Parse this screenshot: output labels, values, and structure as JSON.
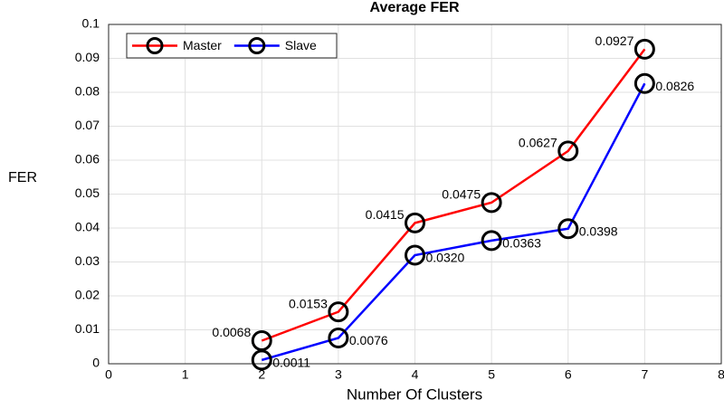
{
  "chart_data": {
    "type": "line",
    "title": "Average FER",
    "x_label": "Number Of Clusters",
    "y_label": "FER",
    "x": [
      2,
      3,
      4,
      5,
      6,
      7
    ],
    "series": [
      {
        "name": "Master",
        "color": "#ff0000",
        "values": [
          0.0068,
          0.0153,
          0.0415,
          0.0475,
          0.0627,
          0.0927
        ],
        "value_labels": [
          "0.0068",
          "0.0153",
          "0.0415",
          "0.0475",
          "0.0627",
          "0.0927"
        ]
      },
      {
        "name": "Slave",
        "color": "#0000ff",
        "values": [
          0.0011,
          0.0076,
          0.032,
          0.0363,
          0.0398,
          0.0826
        ],
        "value_labels": [
          "0.0011",
          "0.0076",
          "0.0320",
          "0.0363",
          "0.0398",
          "0.0826"
        ]
      }
    ],
    "xlim": [
      0,
      8
    ],
    "xticks": [
      0,
      1,
      2,
      3,
      4,
      5,
      6,
      7,
      8
    ],
    "ylim": [
      0,
      0.1
    ],
    "yticks": [
      0,
      0.01,
      0.02,
      0.03,
      0.04,
      0.05,
      0.06,
      0.07,
      0.08,
      0.09,
      0.1
    ],
    "grid": true,
    "legend": "upper left",
    "marker_color": "#000000"
  }
}
